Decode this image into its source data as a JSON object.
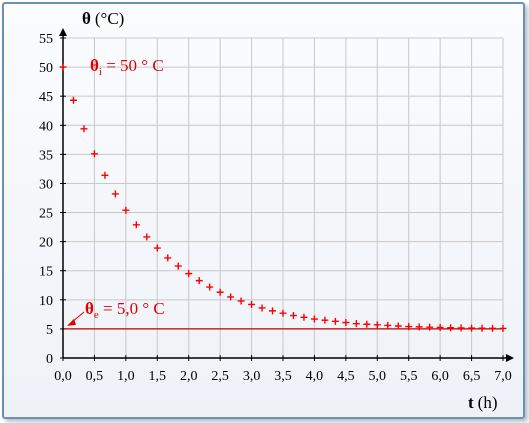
{
  "chart_data": {
    "type": "scatter",
    "ylabel": {
      "symbol": "θ",
      "unit": "(°C)"
    },
    "xlabel": {
      "symbol": "t",
      "unit": "(h)"
    },
    "xlim": [
      0,
      7.0
    ],
    "ylim": [
      0,
      55
    ],
    "xticks": [
      "0,0",
      "0,5",
      "1,0",
      "1,5",
      "2,0",
      "2,5",
      "3,0",
      "3,5",
      "4,0",
      "4,5",
      "5,0",
      "5,5",
      "6,0",
      "6,5",
      "7,0"
    ],
    "yticks": [
      "0",
      "5",
      "10",
      "15",
      "20",
      "25",
      "30",
      "35",
      "40",
      "45",
      "50",
      "55"
    ],
    "grid": true,
    "series": [
      {
        "marker": "+",
        "color": "#ff0000",
        "x": [
          0.0,
          0.1667,
          0.3333,
          0.5,
          0.6667,
          0.8333,
          1.0,
          1.1667,
          1.3333,
          1.5,
          1.6667,
          1.8333,
          2.0,
          2.1667,
          2.3333,
          2.5,
          2.6667,
          2.8333,
          3.0,
          3.1667,
          3.3333,
          3.5,
          3.6667,
          3.8333,
          4.0,
          4.1667,
          4.3333,
          4.5,
          4.6667,
          4.8333,
          5.0,
          5.1667,
          5.3333,
          5.5,
          5.6667,
          5.8333,
          6.0,
          6.1667,
          6.3333,
          6.5,
          6.6667,
          6.8333,
          7.0
        ],
        "y": [
          50.0,
          44.3,
          39.4,
          35.1,
          31.4,
          28.2,
          25.4,
          22.9,
          20.8,
          18.9,
          17.2,
          15.8,
          14.5,
          13.3,
          12.2,
          11.3,
          10.5,
          9.8,
          9.2,
          8.6,
          8.1,
          7.7,
          7.3,
          7.0,
          6.7,
          6.5,
          6.3,
          6.1,
          5.9,
          5.8,
          5.7,
          5.6,
          5.5,
          5.4,
          5.35,
          5.3,
          5.25,
          5.2,
          5.17,
          5.14,
          5.12,
          5.1,
          5.08
        ]
      }
    ],
    "reference_line": {
      "y": 5.0,
      "color": "#c00000"
    },
    "annotations": {
      "initial": {
        "symbol": "θ",
        "sub": "i",
        "text": " = 50 ° C",
        "y": 50
      },
      "exterior": {
        "symbol": "θ",
        "sub": "e",
        "text": " = 5,0 ° C",
        "y": 5.0
      }
    },
    "colors": {
      "grid": "#c8c8c8",
      "axis": "#000000",
      "annotation": "#e00000",
      "frame_border": "#6d8fb3"
    }
  }
}
